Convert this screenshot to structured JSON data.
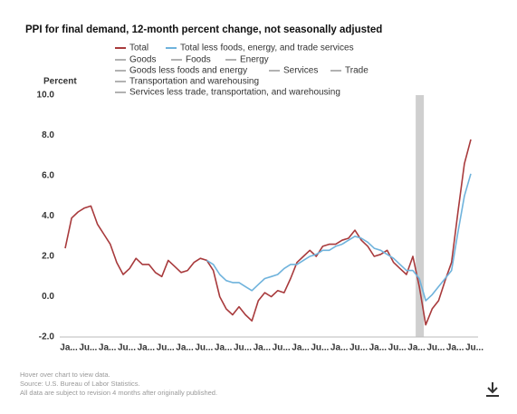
{
  "chart_data": {
    "type": "line",
    "title": "PPI for final demand, 12-month percent change, not seasonally adjusted",
    "ylabel": "Percent",
    "categories": [
      "Ja...",
      null,
      null,
      "Ju...",
      null,
      null,
      "Ja...",
      null,
      null,
      "Ju...",
      null,
      null,
      "Ja...",
      null,
      null,
      "Ju...",
      null,
      null,
      "Ja...",
      null,
      null,
      "Ju...",
      null,
      null,
      "Ja...",
      null,
      null,
      "Ju...",
      null,
      null,
      "Ja...",
      null,
      null,
      "Ju...",
      null,
      null,
      "Ja...",
      null,
      null,
      "Ju...",
      null,
      null,
      "Ja...",
      null,
      null,
      "Ju...",
      null,
      null,
      "Ja...",
      null,
      null,
      "Ju...",
      null,
      null,
      "Ja...",
      null,
      null,
      "Ju...",
      null,
      null,
      "Ja...",
      null,
      null,
      "Ju..."
    ],
    "series": [
      {
        "name": "Total",
        "color": "#a83a3c",
        "values": [
          2.4,
          3.9,
          4.2,
          4.4,
          4.5,
          3.6,
          3.1,
          2.6,
          1.7,
          1.1,
          1.4,
          1.9,
          1.6,
          1.6,
          1.2,
          1.0,
          1.8,
          1.5,
          1.2,
          1.3,
          1.7,
          1.9,
          1.8,
          1.3,
          0.0,
          -0.6,
          -0.9,
          -0.5,
          -0.9,
          -1.2,
          -0.2,
          0.2,
          0.0,
          0.3,
          0.2,
          0.9,
          1.7,
          2.0,
          2.3,
          2.0,
          2.5,
          2.6,
          2.6,
          2.8,
          2.9,
          3.3,
          2.8,
          2.5,
          2.0,
          2.1,
          2.3,
          1.7,
          1.4,
          1.1,
          2.0,
          0.5,
          -1.4,
          -0.6,
          -0.2,
          0.8,
          1.7,
          4.2,
          6.6,
          7.8
        ]
      },
      {
        "name": "Total less foods, energy, and trade services",
        "color": "#6fb3dc",
        "values": [
          null,
          null,
          null,
          null,
          null,
          null,
          null,
          null,
          null,
          null,
          null,
          null,
          null,
          null,
          null,
          null,
          null,
          null,
          null,
          null,
          null,
          null,
          1.8,
          1.6,
          1.1,
          0.8,
          0.7,
          0.7,
          0.5,
          0.3,
          0.6,
          0.9,
          1.0,
          1.1,
          1.4,
          1.6,
          1.6,
          1.8,
          2.0,
          2.1,
          2.3,
          2.3,
          2.5,
          2.6,
          2.8,
          3.0,
          2.9,
          2.7,
          2.4,
          2.3,
          2.1,
          1.9,
          1.6,
          1.3,
          1.3,
          0.9,
          -0.2,
          0.1,
          0.5,
          0.9,
          1.3,
          3.2,
          5.0,
          6.1
        ]
      }
    ],
    "inactive_series": [
      {
        "name": "Goods",
        "color": "#999999"
      },
      {
        "name": "Foods",
        "color": "#999999"
      },
      {
        "name": "Energy",
        "color": "#999999"
      },
      {
        "name": "Goods less foods and energy",
        "color": "#999999"
      },
      {
        "name": "Services",
        "color": "#999999"
      },
      {
        "name": "Trade",
        "color": "#999999"
      },
      {
        "name": "Transportation and warehousing",
        "color": "#999999"
      },
      {
        "name": "Services less trade, transportation, and warehousing",
        "color": "#999999"
      }
    ],
    "ylim": [
      -2,
      10
    ],
    "yticks": [
      {
        "value": 10,
        "label": "10.0"
      },
      {
        "value": 8,
        "label": "8.0"
      },
      {
        "value": 6,
        "label": "6.0"
      },
      {
        "value": 4,
        "label": "4.0"
      },
      {
        "value": 2,
        "label": "2.0"
      },
      {
        "value": 0,
        "label": "0.0"
      },
      {
        "value": -2,
        "label": "-2.0"
      }
    ],
    "grid": false,
    "notes": [
      "Hover over chart to view data.",
      "Source: U.S. Bureau of Labor Statistics.",
      "All data are subject to revision 4 months after originally published."
    ]
  }
}
